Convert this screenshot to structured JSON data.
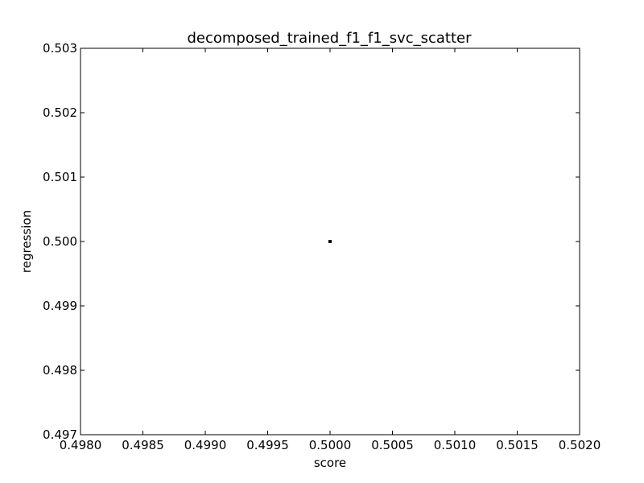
{
  "chart_data": {
    "type": "scatter",
    "title": "decomposed_trained_f1_f1_svc_scatter",
    "xlabel": "score",
    "ylabel": "regression",
    "xlim": [
      0.498,
      0.502
    ],
    "ylim": [
      0.497,
      0.503
    ],
    "xticks": [
      0.498,
      0.4985,
      0.499,
      0.4995,
      0.5,
      0.5005,
      0.501,
      0.5015,
      0.502
    ],
    "xtick_labels": [
      "0.4980",
      "0.4985",
      "0.4990",
      "0.4995",
      "0.5000",
      "0.5005",
      "0.5010",
      "0.5015",
      "0.5020"
    ],
    "yticks": [
      0.497,
      0.498,
      0.499,
      0.5,
      0.501,
      0.502,
      0.503
    ],
    "ytick_labels": [
      "0.497",
      "0.498",
      "0.499",
      "0.500",
      "0.501",
      "0.502",
      "0.503"
    ],
    "points": [
      {
        "x": 0.5,
        "y": 0.5
      }
    ],
    "grid": false,
    "marker_color": "#000000"
  }
}
